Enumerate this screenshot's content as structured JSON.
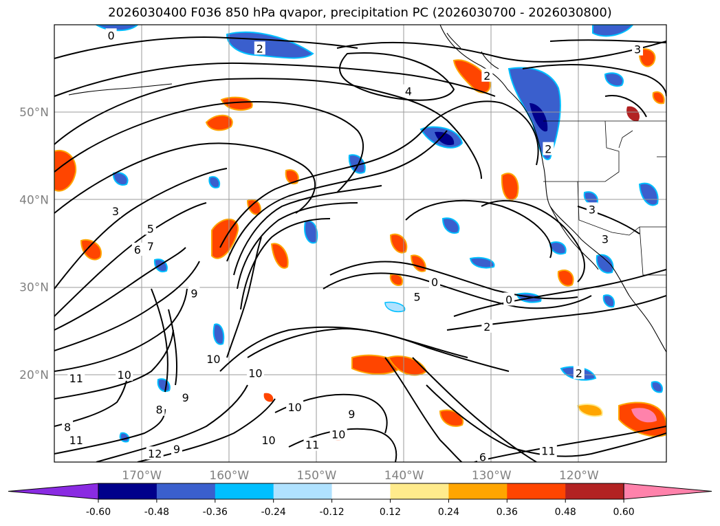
{
  "title": "2026030400 F036 850 hPa qvapor, precipitation PC (2026030700 - 2026030800)",
  "map": {
    "lat_range": [
      10,
      60
    ],
    "lon_range": [
      -180,
      -110
    ],
    "lat_ticks": [
      {
        "value": 50,
        "label": "50°N"
      },
      {
        "value": 40,
        "label": "40°N"
      },
      {
        "value": 30,
        "label": "30°N"
      },
      {
        "value": 20,
        "label": "20°N"
      }
    ],
    "lon_ticks": [
      {
        "value": -170,
        "label": "170°W"
      },
      {
        "value": -160,
        "label": "160°W"
      },
      {
        "value": -150,
        "label": "150°W"
      },
      {
        "value": -140,
        "label": "140°W"
      },
      {
        "value": -130,
        "label": "130°W"
      },
      {
        "value": -120,
        "label": "120°W"
      }
    ],
    "contour_labels": [
      {
        "text": "0",
        "lon": -173.5,
        "lat": 58.8
      },
      {
        "text": "2",
        "lon": -156.5,
        "lat": 57.3
      },
      {
        "text": "3",
        "lon": -113.3,
        "lat": 57.2
      },
      {
        "text": "4",
        "lon": -139.5,
        "lat": 52.4
      },
      {
        "text": "2",
        "lon": -130.5,
        "lat": 54.2
      },
      {
        "text": "2",
        "lon": -123.5,
        "lat": 45.8
      },
      {
        "text": "3",
        "lon": -173.0,
        "lat": 38.7
      },
      {
        "text": "5",
        "lon": -169.0,
        "lat": 36.7
      },
      {
        "text": "6",
        "lon": -170.5,
        "lat": 34.3
      },
      {
        "text": "7",
        "lon": -169.0,
        "lat": 34.7
      },
      {
        "text": "9",
        "lon": -164.0,
        "lat": 29.3
      },
      {
        "text": "0",
        "lon": -136.5,
        "lat": 30.6
      },
      {
        "text": "5",
        "lon": -138.5,
        "lat": 28.9
      },
      {
        "text": "0",
        "lon": -128.0,
        "lat": 28.6
      },
      {
        "text": "2",
        "lon": -130.5,
        "lat": 25.5
      },
      {
        "text": "10",
        "lon": -161.8,
        "lat": 21.8
      },
      {
        "text": "10",
        "lon": -157.0,
        "lat": 20.2
      },
      {
        "text": "10",
        "lon": -172.0,
        "lat": 20.0
      },
      {
        "text": "11",
        "lon": -177.5,
        "lat": 19.6
      },
      {
        "text": "9",
        "lon": -165.0,
        "lat": 17.4
      },
      {
        "text": "8",
        "lon": -168.0,
        "lat": 16.0
      },
      {
        "text": "10",
        "lon": -152.5,
        "lat": 16.3
      },
      {
        "text": "9",
        "lon": -146.0,
        "lat": 15.5
      },
      {
        "text": "8",
        "lon": -178.5,
        "lat": 14.0
      },
      {
        "text": "10",
        "lon": -155.5,
        "lat": 12.5
      },
      {
        "text": "10",
        "lon": -147.5,
        "lat": 13.2
      },
      {
        "text": "11",
        "lon": -150.5,
        "lat": 12.0
      },
      {
        "text": "12",
        "lon": -168.5,
        "lat": 11.0
      },
      {
        "text": "11",
        "lon": -177.5,
        "lat": 12.5
      },
      {
        "text": "9",
        "lon": -166.0,
        "lat": 11.5
      },
      {
        "text": "11",
        "lon": -123.5,
        "lat": 11.3
      },
      {
        "text": "6",
        "lon": -131.0,
        "lat": 10.6
      },
      {
        "text": "3",
        "lon": -118.5,
        "lat": 38.9
      },
      {
        "text": "3",
        "lon": -117.0,
        "lat": 35.5
      },
      {
        "text": "2",
        "lon": -120.0,
        "lat": 20.2
      }
    ]
  },
  "colorbar": {
    "colors": [
      "#8a2be2",
      "#00008b",
      "#3a5fcd",
      "#00bfff",
      "#b0e2ff",
      "#ffffff",
      "#ffeb8c",
      "#ffa500",
      "#ff4500",
      "#b22222",
      "#ff82ab"
    ],
    "ticks": [
      "-0.60",
      "-0.48",
      "-0.36",
      "-0.24",
      "-0.12",
      "0.12",
      "0.24",
      "0.36",
      "0.48",
      "0.60"
    ]
  }
}
